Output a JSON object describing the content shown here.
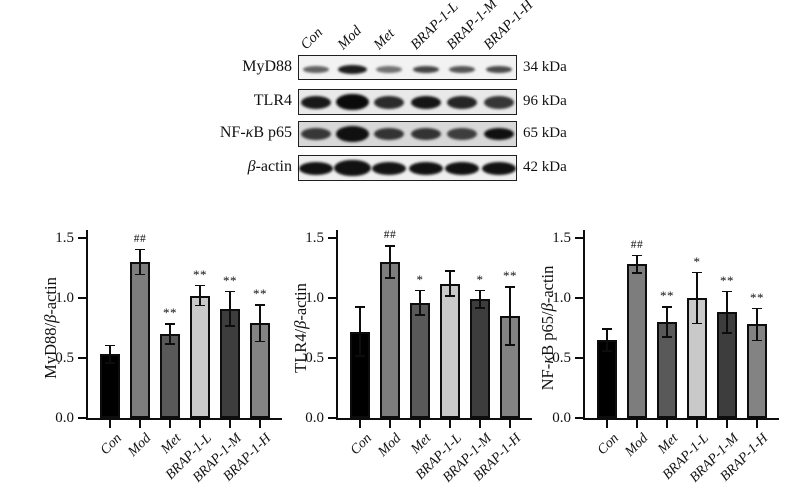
{
  "page": {
    "background": "#ffffff"
  },
  "blot": {
    "lane_labels": [
      "Con",
      "Mod",
      "Met",
      "BRAP-1-L",
      "BRAP-1-M",
      "BRAP-1-H"
    ],
    "rows": [
      {
        "protein": "MyD88",
        "weight": "34 kDa",
        "bg": "#f2f2f2",
        "band_height": 7,
        "band_width": 26,
        "band_v_offset": 2,
        "intensities": [
          0.62,
          0.92,
          0.55,
          0.75,
          0.68,
          0.72
        ]
      },
      {
        "protein": "TLR4",
        "weight": "96 kDa",
        "bg": "#e9e9e9",
        "band_height": 13,
        "band_width": 30,
        "band_v_offset": 0,
        "intensities": [
          0.93,
          1.0,
          0.85,
          0.95,
          0.88,
          0.8
        ]
      },
      {
        "protein": "NF-κB p65",
        "weight": "65 kDa",
        "bg": "#d8d8d8",
        "band_height": 12,
        "band_width": 30,
        "band_v_offset": 0,
        "intensities": [
          0.78,
          0.97,
          0.8,
          0.8,
          0.75,
          0.97
        ]
      },
      {
        "protein": "β-actin",
        "weight": "42 kDa",
        "bg": "#efefef",
        "band_height": 13,
        "band_width": 34,
        "band_v_offset": 0,
        "intensities": [
          0.96,
          0.96,
          0.95,
          0.96,
          0.96,
          0.96
        ]
      }
    ]
  },
  "chart_data": [
    {
      "type": "bar",
      "title": "",
      "ylabel": "MyD88/β-actin",
      "xlabel": "",
      "categories": [
        "Con",
        "Mod",
        "Met",
        "BRAP-1-L",
        "BRAP-1-M",
        "BRAP-1-H"
      ],
      "values": [
        0.53,
        1.3,
        0.7,
        1.02,
        0.91,
        0.79
      ],
      "errors": [
        0.08,
        0.11,
        0.09,
        0.09,
        0.15,
        0.16
      ],
      "sig_labels": [
        "",
        "##",
        "**",
        "**",
        "**",
        "**"
      ],
      "yticks": [
        "0.0",
        "0.5",
        "1.0",
        "1.5"
      ],
      "ylim": [
        0,
        1.5
      ],
      "grid": false,
      "legend": "none",
      "bar_colors": [
        "#000000",
        "#7d7d7d",
        "#595959",
        "#c9c9c9",
        "#3d3d3d",
        "#838383"
      ]
    },
    {
      "type": "bar",
      "title": "",
      "ylabel": "TLR4/β-actin",
      "xlabel": "",
      "categories": [
        "Con",
        "Mod",
        "Met",
        "BRAP-1-L",
        "BRAP-1-M",
        "BRAP-1-H"
      ],
      "values": [
        0.72,
        1.3,
        0.96,
        1.12,
        0.99,
        0.85
      ],
      "errors": [
        0.21,
        0.14,
        0.11,
        0.11,
        0.08,
        0.25
      ],
      "sig_labels": [
        "",
        "##",
        "*",
        "",
        "*",
        "**"
      ],
      "yticks": [
        "0.0",
        "0.5",
        "1.0",
        "1.5"
      ],
      "ylim": [
        0,
        1.5
      ],
      "grid": false,
      "legend": "none",
      "bar_colors": [
        "#000000",
        "#7d7d7d",
        "#595959",
        "#c9c9c9",
        "#3d3d3d",
        "#838383"
      ]
    },
    {
      "type": "bar",
      "title": "",
      "ylabel": "NF-κB p65/β-actin",
      "xlabel": "",
      "categories": [
        "Con",
        "Mod",
        "Met",
        "BRAP-1-L",
        "BRAP-1-M",
        "BRAP-1-H"
      ],
      "values": [
        0.65,
        1.28,
        0.8,
        1.0,
        0.88,
        0.78
      ],
      "errors": [
        0.1,
        0.08,
        0.13,
        0.22,
        0.18,
        0.14
      ],
      "sig_labels": [
        "",
        "##",
        "**",
        "*",
        "**",
        "**"
      ],
      "yticks": [
        "0.0",
        "0.5",
        "1.0",
        "1.5"
      ],
      "ylim": [
        0,
        1.5
      ],
      "grid": false,
      "legend": "none",
      "bar_colors": [
        "#000000",
        "#7d7d7d",
        "#595959",
        "#c9c9c9",
        "#3d3d3d",
        "#838383"
      ]
    }
  ]
}
